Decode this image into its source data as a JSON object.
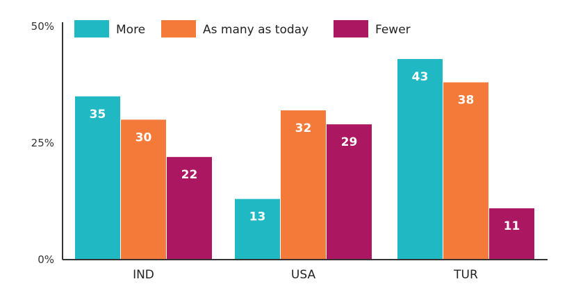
{
  "chart_data": {
    "type": "bar",
    "categories": [
      "IND",
      "USA",
      "TUR"
    ],
    "series": [
      {
        "name": "More",
        "values": [
          35,
          13,
          43
        ],
        "color": "#1fb8c3"
      },
      {
        "name": "As many as today",
        "values": [
          30,
          32,
          38
        ],
        "color": "#f47a3a"
      },
      {
        "name": "Fewer",
        "values": [
          22,
          29,
          11
        ],
        "color": "#ab1761"
      }
    ],
    "ylim": [
      0,
      50
    ],
    "yticks": [
      {
        "value": 0,
        "label": "0%"
      },
      {
        "value": 25,
        "label": "25%"
      },
      {
        "value": 50,
        "label": "50%"
      }
    ],
    "legend_position": "top",
    "grid": false,
    "axis_color": "#333333"
  }
}
